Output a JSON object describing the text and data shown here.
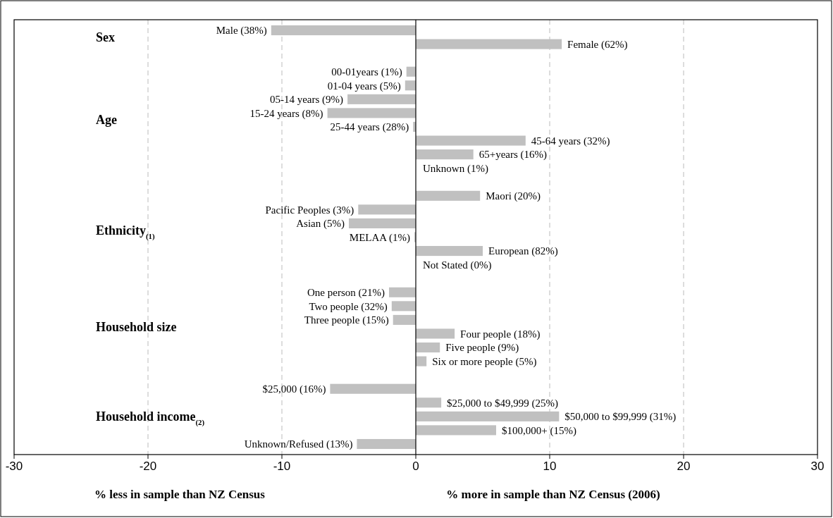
{
  "chart_data": {
    "type": "bar",
    "orientation": "horizontal",
    "categories": [
      "Male (38%)",
      "Female (62%)",
      null,
      "00-01years (1%)",
      "01-04 years (5%)",
      "05-14 years (9%)",
      "15-24 years (8%)",
      "25-44 years (28%)",
      "45-64 years (32%)",
      "65+years (16%)",
      "Unknown (1%)",
      null,
      "Maori (20%)",
      "Pacific Peoples (3%)",
      "Asian (5%)",
      "MELAA (1%)",
      "European (82%)",
      "Not Stated (0%)",
      null,
      "One person (21%)",
      "Two people (32%)",
      "Three people (15%)",
      "Four people (18%)",
      "Five people (9%)",
      "Six or more people (5%)",
      null,
      "$25,000 (16%)",
      "$25,000 to $49,999 (25%)",
      "$50,000 to $99,999 (31%)",
      "$100,000+ (15%)",
      "Unknown/Refused (13%)"
    ],
    "values": [
      -10.8,
      10.9,
      null,
      -0.7,
      -0.8,
      -5.1,
      -6.6,
      -0.2,
      8.2,
      4.3,
      0,
      null,
      4.8,
      -4.3,
      -5.0,
      -0.1,
      5.0,
      0,
      null,
      -2.0,
      -1.8,
      -1.7,
      2.9,
      1.8,
      0.8,
      null,
      -6.4,
      1.9,
      10.7,
      6.0,
      -4.4
    ],
    "color": "#c0c0c0",
    "xlim": [
      -30,
      30
    ],
    "xticks": [
      -30,
      -20,
      -10,
      0,
      10,
      20,
      30
    ],
    "grid": "x",
    "xlabel": "% more in sample than NZ Census (2006)",
    "annotations": [
      "Sex",
      "Age",
      "Ethnicity$_{(1)}$",
      "Household size",
      "Household income$_{(2)}$",
      "% less in sample than NZ Census"
    ]
  }
}
